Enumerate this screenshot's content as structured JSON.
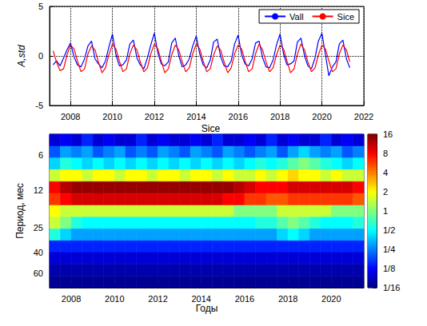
{
  "chart_data": [
    {
      "type": "line",
      "ylabel": "A,std",
      "x": [
        2007.17,
        2007.33,
        2007.5,
        2007.67,
        2007.83,
        2008,
        2008.17,
        2008.33,
        2008.5,
        2008.67,
        2008.83,
        2009,
        2009.17,
        2009.33,
        2009.5,
        2009.67,
        2009.83,
        2010,
        2010.17,
        2010.33,
        2010.5,
        2010.67,
        2010.83,
        2011,
        2011.17,
        2011.33,
        2011.5,
        2011.67,
        2011.83,
        2012,
        2012.17,
        2012.33,
        2012.5,
        2012.67,
        2012.83,
        2013,
        2013.17,
        2013.33,
        2013.5,
        2013.67,
        2013.83,
        2014,
        2014.17,
        2014.33,
        2014.5,
        2014.67,
        2014.83,
        2015,
        2015.17,
        2015.33,
        2015.5,
        2015.67,
        2015.83,
        2016,
        2016.17,
        2016.33,
        2016.5,
        2016.67,
        2016.83,
        2017,
        2017.17,
        2017.33,
        2017.5,
        2017.67,
        2017.83,
        2018,
        2018.17,
        2018.33,
        2018.5,
        2018.67,
        2018.83,
        2019,
        2019.17,
        2019.33,
        2019.5,
        2019.67,
        2019.83,
        2020,
        2020.17,
        2020.33,
        2020.5,
        2020.67,
        2020.83,
        2021,
        2021.17,
        2021.33
      ],
      "xlim": [
        2007,
        2022
      ],
      "xticks": [
        2008,
        2010,
        2012,
        2014,
        2016,
        2018,
        2020,
        2022
      ],
      "ylim": [
        -5,
        5
      ],
      "yticks": [
        -5,
        0,
        5
      ],
      "grid": true,
      "legend": "upper right",
      "series": [
        {
          "name": "Vall",
          "color": "#0000ff",
          "values": [
            -0.9,
            -0.5,
            -1.0,
            -0.2,
            0.6,
            1.3,
            -0.1,
            -0.9,
            -1.1,
            -0.3,
            1.0,
            1.5,
            -0.3,
            -0.8,
            -1.2,
            -0.5,
            0.9,
            2.2,
            0.1,
            -1.0,
            -0.9,
            -0.4,
            1.2,
            1.6,
            -0.2,
            -0.9,
            -1.3,
            -0.2,
            1.1,
            2.3,
            0.3,
            -0.8,
            -1.0,
            -0.6,
            1.3,
            1.8,
            0.0,
            -1.1,
            -0.9,
            -0.3,
            1.0,
            2.0,
            0.2,
            -0.9,
            -1.2,
            -0.4,
            1.4,
            1.7,
            -0.1,
            -1.0,
            -1.1,
            -0.5,
            1.2,
            2.1,
            0.1,
            -0.8,
            -1.0,
            -0.3,
            1.3,
            1.5,
            -0.2,
            -1.1,
            -1.2,
            -0.4,
            1.1,
            2.2,
            0.2,
            -0.9,
            -0.8,
            -0.5,
            1.4,
            1.8,
            0.0,
            -1.0,
            -1.3,
            -0.2,
            1.5,
            2.3,
            0.1,
            -2.0,
            -1.1,
            -0.6,
            1.2,
            1.6,
            -0.3,
            -1.2
          ]
        },
        {
          "name": "Sice",
          "color": "#ff0000",
          "values": [
            0.5,
            -0.6,
            -1.5,
            -1.3,
            0.1,
            1.1,
            0.7,
            -0.5,
            -1.6,
            -1.3,
            0.2,
            1.0,
            0.6,
            -0.6,
            -1.7,
            -1.2,
            0.1,
            1.2,
            0.7,
            -0.5,
            -1.6,
            -1.3,
            0.2,
            1.1,
            0.6,
            -0.6,
            -1.6,
            -1.2,
            0.2,
            1.2,
            0.7,
            -0.5,
            -1.7,
            -1.3,
            0.1,
            1.1,
            0.6,
            -0.6,
            -1.6,
            -1.2,
            0.2,
            1.2,
            0.7,
            -0.5,
            -1.6,
            -1.3,
            0.1,
            1.0,
            0.6,
            -0.6,
            -1.7,
            -1.2,
            0.2,
            1.1,
            0.7,
            -0.5,
            -1.6,
            -1.3,
            0.2,
            1.2,
            0.6,
            -0.6,
            -1.6,
            -1.2,
            0.1,
            1.1,
            0.7,
            -0.5,
            -1.7,
            -1.3,
            0.2,
            1.2,
            0.6,
            -0.6,
            -1.6,
            -1.2,
            0.1,
            1.1,
            0.7,
            -0.5,
            -1.6,
            -1.3,
            0.2,
            1.1,
            0.6,
            -0.6
          ]
        }
      ]
    },
    {
      "type": "heatmap",
      "title": "Sice",
      "xlabel": "Годы",
      "ylabel": "Период, мес",
      "log": "y",
      "x": [
        2007.25,
        2007.75,
        2008.25,
        2008.75,
        2009.25,
        2009.75,
        2010.25,
        2010.75,
        2011.25,
        2011.75,
        2012.25,
        2012.75,
        2013.25,
        2013.75,
        2014.25,
        2014.75,
        2015.25,
        2015.75,
        2016.25,
        2016.75,
        2017.25,
        2017.75,
        2018.25,
        2018.75,
        2019.25,
        2019.75,
        2020.25,
        2020.75,
        2021.25
      ],
      "y": [
        4.5,
        5.7,
        7.1,
        9,
        11.3,
        14.3,
        18,
        22.6,
        28.5,
        36,
        45,
        57,
        72
      ],
      "cells": [
        [
          0.1,
          0.12,
          0.1,
          0.15,
          0.1,
          0.12,
          0.1,
          0.1,
          0.15,
          0.1,
          0.12,
          0.1,
          0.1,
          0.12,
          0.1,
          0.15,
          0.1,
          0.1,
          0.12,
          0.1,
          0.15,
          0.1,
          0.12,
          0.1,
          0.1,
          0.15,
          0.1,
          0.12,
          0.1
        ],
        [
          0.2,
          0.3,
          0.25,
          0.3,
          0.2,
          0.25,
          0.3,
          0.2,
          0.25,
          0.2,
          0.3,
          0.25,
          0.2,
          0.3,
          0.25,
          0.2,
          0.3,
          0.25,
          0.2,
          0.25,
          0.3,
          0.2,
          0.3,
          0.4,
          0.3,
          0.25,
          0.3,
          0.2,
          0.25
        ],
        [
          0.4,
          0.6,
          0.5,
          0.4,
          0.5,
          0.4,
          0.5,
          0.4,
          0.5,
          0.4,
          0.5,
          0.4,
          0.5,
          0.4,
          0.5,
          0.4,
          0.5,
          0.4,
          0.5,
          0.6,
          0.5,
          0.6,
          0.8,
          1,
          0.8,
          0.6,
          0.5,
          0.4,
          0.5
        ],
        [
          1.5,
          2,
          2,
          1.5,
          2,
          2,
          1.5,
          2,
          2,
          1.5,
          2,
          2,
          1.5,
          2,
          2,
          1.5,
          2,
          1.5,
          1.5,
          2,
          1.5,
          2,
          2.5,
          2,
          2,
          1.5,
          2,
          1.5,
          1.5
        ],
        [
          8,
          12,
          14,
          14,
          14,
          14,
          14,
          14,
          14,
          14,
          14,
          14,
          14,
          14,
          14,
          14,
          14,
          12,
          10,
          8,
          8,
          8,
          10,
          10,
          10,
          10,
          10,
          10,
          8
        ],
        [
          6,
          8,
          10,
          10,
          10,
          10,
          10,
          10,
          10,
          10,
          10,
          10,
          10,
          10,
          10,
          10,
          8,
          8,
          6,
          6,
          5,
          5,
          6,
          6,
          6,
          6,
          6,
          6,
          5
        ],
        [
          2,
          1.5,
          1.5,
          1.5,
          1.5,
          1.5,
          1.5,
          1.5,
          1.5,
          1.5,
          1.5,
          1.5,
          1.5,
          1.5,
          1.5,
          1.5,
          1.5,
          1,
          1,
          1,
          1,
          1.5,
          1.5,
          1.5,
          1.5,
          1.5,
          1,
          1,
          1
        ],
        [
          1.5,
          1,
          0.6,
          0.5,
          0.5,
          0.5,
          0.5,
          0.5,
          0.5,
          0.5,
          0.5,
          0.5,
          0.5,
          0.5,
          0.5,
          0.5,
          0.5,
          0.5,
          0.5,
          0.6,
          0.6,
          0.8,
          1,
          0.8,
          0.6,
          0.5,
          0.5,
          0.5,
          0.6
        ],
        [
          0.6,
          0.4,
          0.3,
          0.3,
          0.3,
          0.3,
          0.3,
          0.3,
          0.3,
          0.3,
          0.3,
          0.3,
          0.3,
          0.3,
          0.3,
          0.3,
          0.3,
          0.3,
          0.3,
          0.3,
          0.3,
          0.4,
          0.5,
          0.4,
          0.3,
          0.3,
          0.3,
          0.3,
          0.3
        ],
        [
          0.15,
          0.15,
          0.15,
          0.15,
          0.15,
          0.15,
          0.15,
          0.15,
          0.15,
          0.15,
          0.15,
          0.15,
          0.15,
          0.15,
          0.15,
          0.15,
          0.15,
          0.15,
          0.15,
          0.15,
          0.15,
          0.15,
          0.15,
          0.15,
          0.15,
          0.15,
          0.15,
          0.15,
          0.15
        ],
        [
          0.1,
          0.1,
          0.1,
          0.1,
          0.1,
          0.1,
          0.1,
          0.1,
          0.1,
          0.1,
          0.1,
          0.1,
          0.1,
          0.1,
          0.1,
          0.1,
          0.1,
          0.1,
          0.1,
          0.1,
          0.1,
          0.1,
          0.1,
          0.1,
          0.1,
          0.1,
          0.1,
          0.1,
          0.1
        ],
        [
          0.08,
          0.08,
          0.08,
          0.08,
          0.08,
          0.08,
          0.08,
          0.08,
          0.08,
          0.08,
          0.08,
          0.08,
          0.08,
          0.08,
          0.08,
          0.08,
          0.08,
          0.08,
          0.08,
          0.08,
          0.08,
          0.08,
          0.08,
          0.08,
          0.08,
          0.08,
          0.08,
          0.08,
          0.08
        ],
        [
          0.07,
          0.07,
          0.07,
          0.07,
          0.07,
          0.07,
          0.07,
          0.07,
          0.07,
          0.07,
          0.07,
          0.07,
          0.07,
          0.07,
          0.07,
          0.07,
          0.07,
          0.07,
          0.07,
          0.07,
          0.07,
          0.07,
          0.07,
          0.07,
          0.07,
          0.07,
          0.07,
          0.07,
          0.07
        ]
      ],
      "xlim": [
        2007,
        2021.5
      ],
      "xticks": [
        2008,
        2010,
        2012,
        2014,
        2016,
        2018,
        2020
      ],
      "ylim": [
        4,
        80
      ],
      "yticks": [
        6,
        12,
        25,
        40,
        60
      ],
      "color_range": [
        0.0625,
        16
      ],
      "color_ticks": [
        16,
        8,
        4,
        2,
        1,
        {
          "value": 0.5,
          "label": "1/2"
        },
        {
          "value": 0.25,
          "label": "1/4"
        },
        {
          "value": 0.125,
          "label": "1/8"
        },
        {
          "value": 0.0625,
          "label": "1/16"
        }
      ]
    }
  ]
}
